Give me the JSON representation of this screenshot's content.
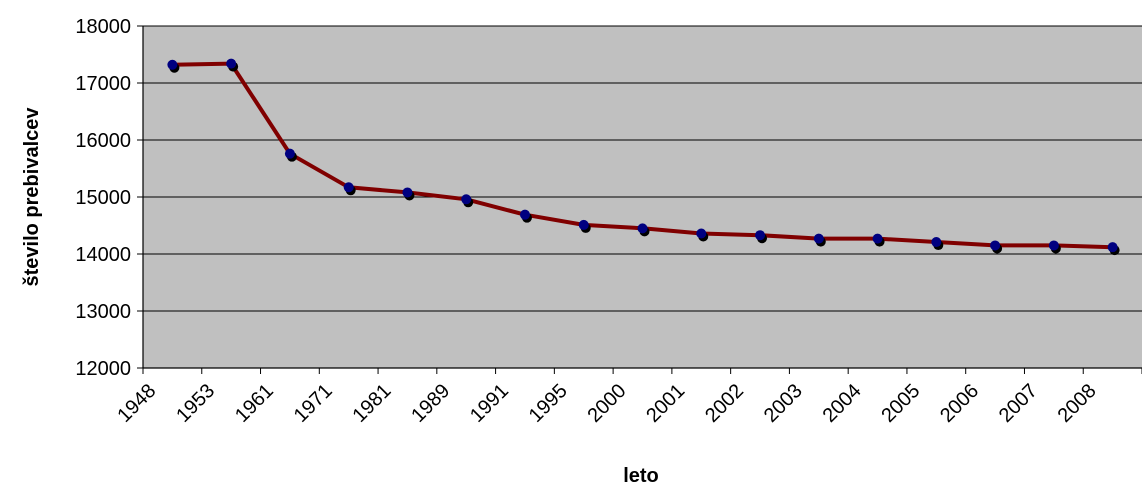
{
  "chart_data": {
    "type": "line",
    "title": "",
    "xlabel": "leto",
    "ylabel": "število prebivalcev",
    "categories": [
      "1948",
      "1953",
      "1961",
      "1971",
      "1981",
      "1989",
      "1991",
      "1995",
      "2000",
      "2001",
      "2002",
      "2003",
      "2004",
      "2005",
      "2006",
      "2007",
      "2008"
    ],
    "series": [
      {
        "values": [
          17320,
          17340,
          15760,
          15170,
          15080,
          14960,
          14690,
          14510,
          14450,
          14360,
          14330,
          14270,
          14270,
          14210,
          14150,
          14150,
          14120
        ]
      }
    ],
    "ylim": [
      12000,
      18000
    ],
    "yticks": [
      12000,
      13000,
      14000,
      15000,
      16000,
      17000,
      18000
    ],
    "grid": "horizontal",
    "legend": "none",
    "colors": {
      "plot_background": "#c0c0c0",
      "line": "#800000",
      "marker": "#000080",
      "gridline": "#000000"
    }
  }
}
